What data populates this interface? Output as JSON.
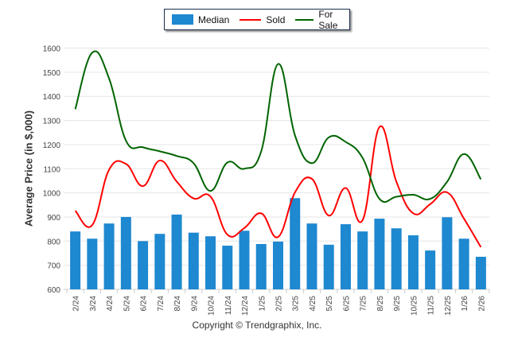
{
  "legend": {
    "items": [
      {
        "label": "Median",
        "type": "bar",
        "color": "#1e88d0"
      },
      {
        "label": "Sold",
        "type": "line",
        "color": "#ff0000"
      },
      {
        "label": "For Sale",
        "type": "line",
        "color": "#006400"
      }
    ]
  },
  "footer": {
    "copyright": "Copyright © Trendgraphix, Inc."
  },
  "chart_data": {
    "type": "bar",
    "title": "",
    "xlabel": "",
    "ylabel": "Average Price (in $,000)",
    "ylim": [
      600,
      1600
    ],
    "yticks": [
      600,
      700,
      800,
      900,
      1000,
      1100,
      1200,
      1300,
      1400,
      1500,
      1600
    ],
    "grid": true,
    "legend_position": "top-center",
    "categories": [
      "2/24",
      "3/24",
      "4/24",
      "5/24",
      "6/24",
      "7/24",
      "8/24",
      "9/24",
      "10/24",
      "11/24",
      "12/24",
      "1/25",
      "2/25",
      "3/25",
      "4/25",
      "5/25",
      "6/25",
      "7/25",
      "8/25",
      "9/25",
      "10/25",
      "11/25",
      "12/25",
      "1/26",
      "2/26"
    ],
    "series": [
      {
        "name": "Median",
        "type": "bar",
        "color": "#1e88d0",
        "values": [
          840,
          810,
          873,
          900,
          800,
          830,
          910,
          835,
          820,
          781,
          843,
          788,
          798,
          978,
          873,
          785,
          870,
          840,
          893,
          853,
          824,
          761,
          899,
          810,
          735
        ]
      },
      {
        "name": "Sold",
        "type": "line",
        "color": "#ff0000",
        "values": [
          926,
          866,
          1096,
          1120,
          1028,
          1134,
          1047,
          977,
          985,
          827,
          854,
          915,
          817,
          1002,
          1058,
          906,
          1020,
          887,
          1273,
          1046,
          915,
          953,
          1002,
          893,
          775
        ]
      },
      {
        "name": "For Sale",
        "type": "line",
        "color": "#006400",
        "values": [
          1347,
          1581,
          1474,
          1216,
          1189,
          1172,
          1153,
          1123,
          1008,
          1126,
          1100,
          1172,
          1534,
          1238,
          1123,
          1230,
          1211,
          1145,
          975,
          984,
          992,
          975,
          1046,
          1161,
          1056
        ]
      }
    ]
  }
}
